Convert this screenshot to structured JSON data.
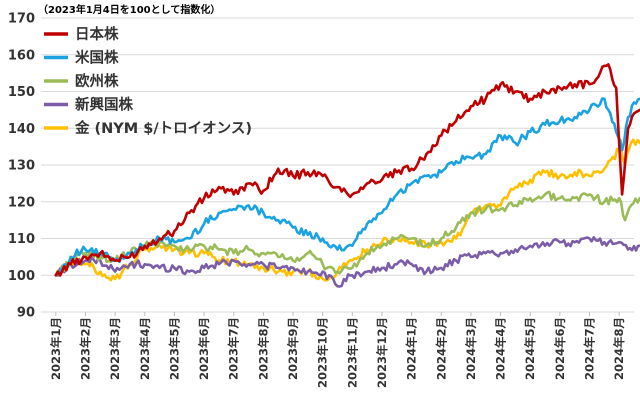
{
  "chart_data": {
    "type": "line",
    "note": "（2023年1月4日を100として指数化）",
    "ylim": [
      90,
      170
    ],
    "yticks": [
      90,
      100,
      110,
      120,
      130,
      140,
      150,
      160,
      170
    ],
    "categories": [
      "2023年1月",
      "2023年2月",
      "2023年3月",
      "2023年4月",
      "2023年5月",
      "2023年6月",
      "2023年7月",
      "2023年8月",
      "2023年9月",
      "2023年10月",
      "2023年11月",
      "2023年12月",
      "2024年1月",
      "2024年2月",
      "2024年3月",
      "2024年4月",
      "2024年5月",
      "2024年6月",
      "2024年7月",
      "2024年8月"
    ],
    "x_end": 19.7,
    "grid": true,
    "legend_position": "top-left",
    "series": [
      {
        "name": "日本株",
        "color": "#c00000",
        "x": [
          0,
          0.5,
          1,
          1.5,
          2,
          2.5,
          3,
          3.5,
          4,
          4.5,
          5,
          5.5,
          6,
          6.5,
          7,
          7.5,
          8,
          8.5,
          9,
          9.5,
          10,
          10.5,
          11,
          11.5,
          12,
          12.5,
          13,
          13.5,
          14,
          14.5,
          15,
          15.5,
          16,
          16.5,
          17,
          17.5,
          18,
          18.3,
          18.5,
          18.7,
          18.9,
          19.1,
          19.3,
          19.5,
          19.7
        ],
        "y": [
          100,
          103,
          105,
          106,
          104,
          105,
          108,
          110,
          112,
          117,
          121,
          124,
          122,
          125,
          123,
          129,
          127,
          128,
          127,
          124,
          122,
          125,
          126,
          128,
          129,
          133,
          138,
          142,
          146,
          148,
          152,
          150,
          148,
          150,
          151,
          152,
          152,
          154,
          157,
          156,
          151,
          122,
          140,
          144,
          145
        ]
      },
      {
        "name": "米国株",
        "color": "#1aa3e0",
        "x": [
          0,
          0.5,
          1,
          1.5,
          2,
          2.5,
          3,
          3.5,
          4,
          4.5,
          5,
          5.5,
          6,
          6.5,
          7,
          7.5,
          8,
          8.5,
          9,
          9.5,
          10,
          10.5,
          11,
          11.5,
          12,
          12.5,
          13,
          13.5,
          14,
          14.5,
          15,
          15.5,
          16,
          16.5,
          17,
          17.5,
          18,
          18.5,
          18.9,
          19.1,
          19.3,
          19.5,
          19.7
        ],
        "y": [
          100,
          105,
          107,
          106,
          104,
          106,
          108,
          110,
          109,
          110,
          114,
          117,
          118,
          119,
          117,
          115,
          113,
          111,
          110,
          107,
          108,
          114,
          117,
          122,
          125,
          127,
          128,
          131,
          132,
          133,
          138,
          136,
          139,
          141,
          142,
          143,
          145,
          148,
          139,
          134,
          143,
          147,
          148
        ]
      },
      {
        "name": "欧州株",
        "color": "#9bbb59",
        "x": [
          0,
          0.5,
          1,
          1.5,
          2,
          2.5,
          3,
          3.5,
          4,
          4.5,
          5,
          5.5,
          6,
          6.5,
          7,
          7.5,
          8,
          8.5,
          9,
          9.5,
          10,
          10.5,
          11,
          11.5,
          12,
          12.5,
          13,
          13.5,
          14,
          14.5,
          15,
          15.5,
          16,
          16.5,
          17,
          17.5,
          18,
          18.5,
          19,
          19.2,
          19.4,
          19.7
        ],
        "y": [
          100,
          104,
          106,
          105,
          104,
          106,
          108,
          109,
          108,
          107,
          108,
          107,
          106,
          107,
          106,
          105,
          104,
          106,
          103,
          101,
          102,
          106,
          108,
          110,
          110,
          108,
          110,
          113,
          117,
          118,
          118,
          119,
          121,
          122,
          121,
          121,
          122,
          120,
          121,
          115,
          119,
          121
        ]
      },
      {
        "name": "新興国株",
        "color": "#7b5ea7",
        "x": [
          0,
          0.5,
          1,
          1.5,
          2,
          2.5,
          3,
          3.5,
          4,
          4.5,
          5,
          5.5,
          6,
          6.5,
          7,
          7.5,
          8,
          8.5,
          9,
          9.5,
          10,
          10.5,
          11,
          11.5,
          12,
          12.5,
          13,
          13.5,
          14,
          14.5,
          15,
          15.5,
          16,
          16.5,
          17,
          17.5,
          18,
          18.5,
          19,
          19.3,
          19.7
        ],
        "y": [
          100,
          103,
          104,
          104,
          101,
          103,
          103,
          102,
          102,
          101,
          102,
          103,
          104,
          103,
          103,
          102,
          102,
          101,
          101,
          97,
          100,
          101,
          102,
          103,
          103,
          101,
          102,
          104,
          105,
          106,
          106,
          107,
          108,
          108,
          109,
          109,
          110,
          109,
          109,
          107,
          108
        ]
      },
      {
        "name": "金 (NYM $/トロイオンス)",
        "color": "#ffc000",
        "x": [
          0,
          0.5,
          1,
          1.5,
          2,
          2.5,
          3,
          3.5,
          4,
          4.5,
          5,
          5.5,
          6,
          6.5,
          7,
          7.5,
          8,
          8.5,
          9,
          9.5,
          10,
          10.5,
          11,
          11.5,
          12,
          12.5,
          13,
          13.5,
          14,
          14.5,
          15,
          15.5,
          16,
          16.5,
          17,
          17.5,
          18,
          18.5,
          19,
          19.2,
          19.4,
          19.7
        ],
        "y": [
          100,
          104,
          103,
          101,
          99,
          103,
          107,
          108,
          107,
          106,
          106,
          104,
          104,
          103,
          102,
          101,
          101,
          101,
          99,
          101,
          104,
          107,
          109,
          110,
          109,
          108,
          109,
          110,
          117,
          119,
          119,
          124,
          126,
          128,
          127,
          128,
          127,
          129,
          134,
          130,
          136,
          136
        ]
      }
    ]
  }
}
